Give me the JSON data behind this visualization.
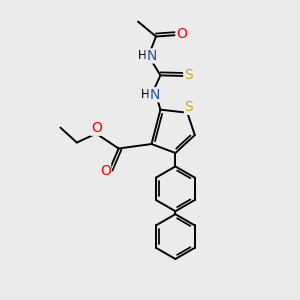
{
  "bg_color": "#ebebeb",
  "atom_colors": {
    "N": "#2255aa",
    "O": "#ff0000",
    "S": "#ccaa00"
  },
  "bond_color": "#000000",
  "bond_width": 1.4
}
